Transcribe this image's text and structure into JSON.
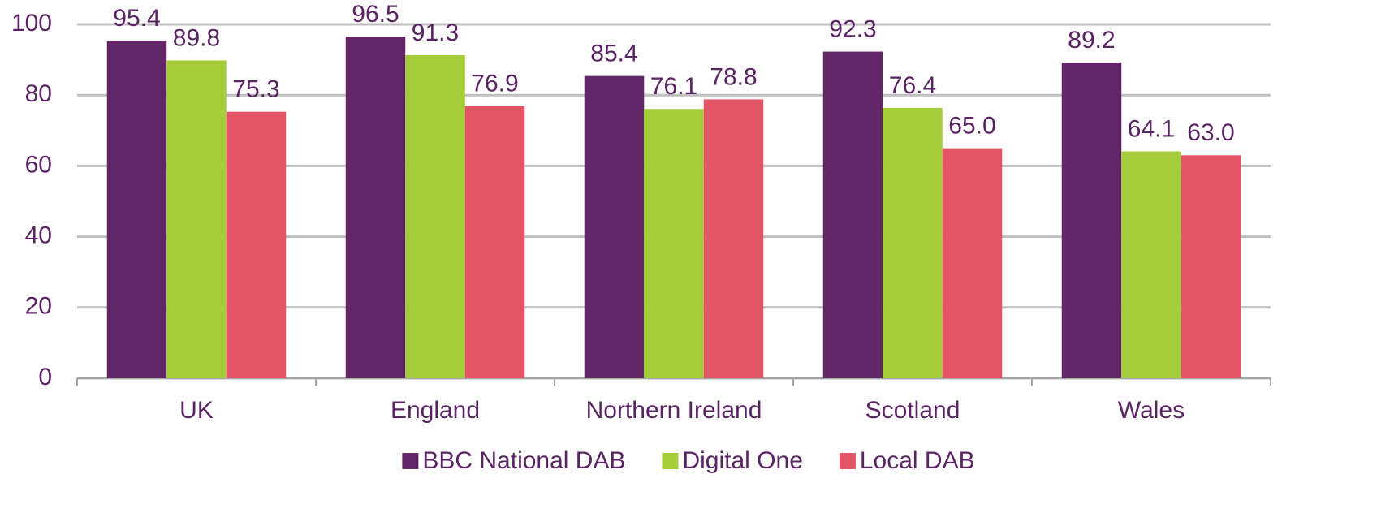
{
  "chart_data": {
    "type": "bar",
    "categories": [
      "UK",
      "England",
      "Northern Ireland",
      "Scotland",
      "Wales"
    ],
    "series": [
      {
        "name": "BBC National DAB",
        "color": "#622565",
        "values": [
          95.4,
          96.5,
          85.4,
          92.3,
          89.2
        ],
        "value_labels": [
          "95.4",
          "96.5",
          "85.4",
          "92.3",
          "89.2"
        ]
      },
      {
        "name": "Digital One",
        "color": "#a5cd39",
        "values": [
          89.8,
          91.3,
          76.1,
          76.4,
          64.1
        ],
        "value_labels": [
          "89.8",
          "91.3",
          "76.1",
          "76.4",
          "64.1"
        ]
      },
      {
        "name": "Local DAB",
        "color": "#e35566",
        "values": [
          75.3,
          76.9,
          78.8,
          65,
          63
        ],
        "value_labels": [
          "75.3",
          "76.9",
          "78.8",
          "65.0",
          "63.0"
        ]
      }
    ],
    "ylim": [
      0,
      100
    ],
    "yticks": [
      0,
      20,
      40,
      60,
      80,
      100
    ],
    "grid": true,
    "legend": "bottom"
  }
}
